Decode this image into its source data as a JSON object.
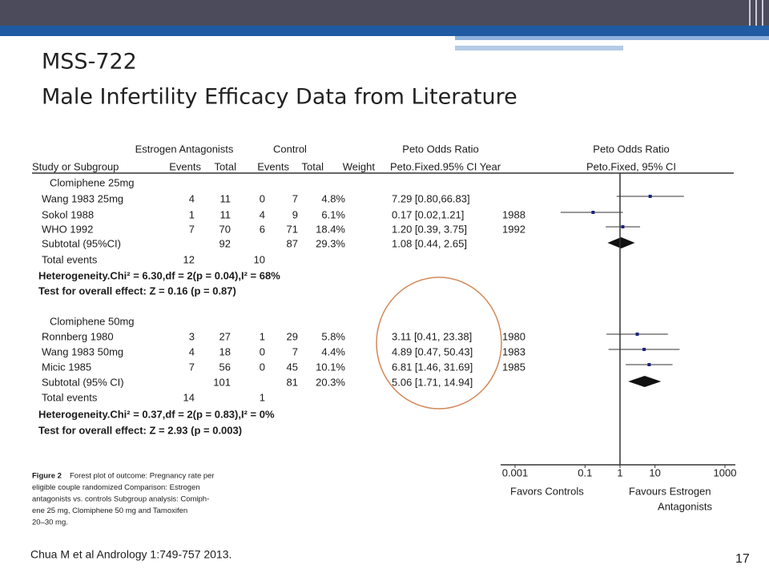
{
  "slide": {
    "title": "MSS-722",
    "subtitle": "Male Infertility Efficacy Data from Literature",
    "citation": "Chua M et al Andrology 1:749-757 2013.",
    "page_number": "17"
  },
  "forest": {
    "header_top": [
      "Estrogen Antagonists",
      "Control",
      "Peto Odds Ratio",
      "Peto Odds Ratio"
    ],
    "header_columns": [
      "Study or Subgroup",
      "Events",
      "Total",
      "Events",
      "Total",
      "Weight",
      "Peto.Fixed.95% CI Year",
      "Peto.Fixed, 95% CI"
    ],
    "rows": [
      {
        "heading": "Clomiphene 25mg"
      },
      {
        "study": "Wang 1983 25mg",
        "events_ea": 4,
        "total_ea": 11,
        "events_ctrl": 0,
        "total_ctrl": 7,
        "weight": "4.8%",
        "ci": "7.29 [0.80,66.83]",
        "marker": "square",
        "or": 7.29,
        "lo": 0.8,
        "hi": 66.83
      },
      {
        "study": "Sokol 1988",
        "events_ea": 1,
        "total_ea": 11,
        "events_ctrl": 4,
        "total_ctrl": 9,
        "weight": "6.1%",
        "ci": "0.17 [0.02,1.21]",
        "year": "1988",
        "marker": "square",
        "or": 0.17,
        "lo": 0.02,
        "hi": 1.21
      },
      {
        "study": "WHO 1992",
        "events_ea": 7,
        "total_ea": 70,
        "events_ctrl": 6,
        "total_ctrl": 71,
        "weight": "18.4%",
        "ci": "1.20 [0.39, 3.75]",
        "year": "1992",
        "marker": "square",
        "or": 1.2,
        "lo": 0.39,
        "hi": 3.75
      },
      {
        "study": "Subtotal (95%CI)",
        "total_ea": 92,
        "total_ctrl": 87,
        "weight": "29.3%",
        "ci": "1.08 [0.44, 2.65]",
        "marker": "diamond",
        "or": 1.08,
        "lo": 0.44,
        "hi": 2.65
      },
      {
        "study": "Total events",
        "events_ea": 12,
        "events_ctrl": 10
      },
      {
        "note": "Heterogeneity.Chi² = 6.30,df = 2(p = 0.04),I² = 68%"
      },
      {
        "note": "Test for overall effect: Z = 0.16 (p = 0.87)"
      },
      {
        "heading": "Clomiphene 50mg"
      },
      {
        "study": "Ronnberg 1980",
        "events_ea": 3,
        "total_ea": 27,
        "events_ctrl": 1,
        "total_ctrl": 29,
        "weight": "5.8%",
        "ci": "3.11 [0.41, 23.38]",
        "year": "1980",
        "marker": "square",
        "or": 3.11,
        "lo": 0.41,
        "hi": 23.38
      },
      {
        "study": "Wang 1983 50mg",
        "events_ea": 4,
        "total_ea": 18,
        "events_ctrl": 0,
        "total_ctrl": 7,
        "weight": "4.4%",
        "ci": "4.89 [0.47, 50.43]",
        "year": "1983",
        "marker": "square",
        "or": 4.89,
        "lo": 0.47,
        "hi": 50.43
      },
      {
        "study": "Micic 1985",
        "events_ea": 7,
        "total_ea": 56,
        "events_ctrl": 0,
        "total_ctrl": 45,
        "weight": "10.1%",
        "ci": "6.81 [1.46, 31.69]",
        "year": "1985",
        "marker": "square",
        "or": 6.81,
        "lo": 1.46,
        "hi": 31.69
      },
      {
        "study": "Subtotal (95% CI)",
        "total_ea": 101,
        "total_ctrl": 81,
        "weight": "20.3%",
        "ci": "5.06 [1.71, 14.94]",
        "marker": "diamond",
        "or": 5.06,
        "lo": 1.71,
        "hi": 14.94
      },
      {
        "study": "Total events",
        "events_ea": 14,
        "events_ctrl": 1
      },
      {
        "note": "Heterogeneity.Chi² = 0.37,df = 2(p = 0.83),I² = 0%"
      },
      {
        "note": "Test for overall effect: Z = 2.93 (p = 0.003)"
      }
    ],
    "xlim": [
      0.001,
      1000
    ],
    "xticks": [
      0.001,
      0.1,
      1,
      10,
      1000
    ],
    "log_scale": true,
    "x_label_left": "Favors Controls",
    "x_label_right": [
      "Favours Estrogen",
      "Antagonists"
    ],
    "caption_label": "Figure 2",
    "caption_lines": [
      "Forest plot of outcome: Pregnancy rate per",
      "eligible couple randomized Comparison: Estrogen",
      "antagonists vs. controls Subgroup analysis: Comiph-",
      "ene 25 mg, Clomiphene 50 mg and Tamoxifen",
      "20–30 mg."
    ]
  }
}
